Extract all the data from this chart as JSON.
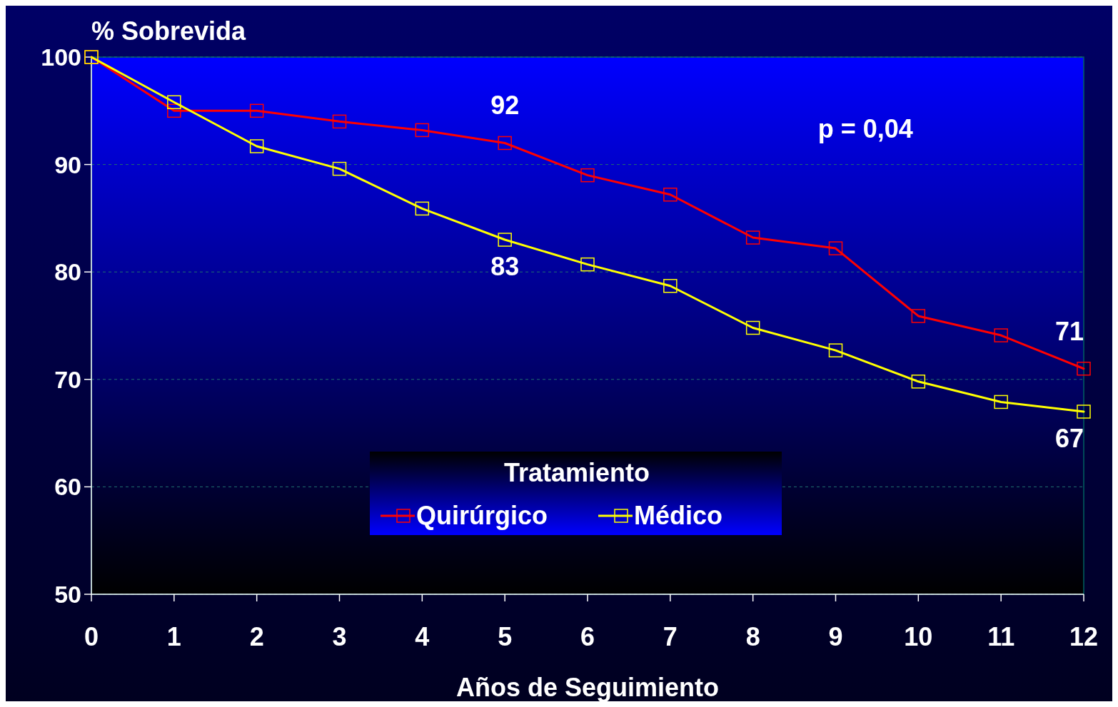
{
  "chart_data": {
    "type": "line",
    "ylabel": "% Sobrevida",
    "xlabel": "Años de Seguimiento",
    "legend_title": "Tratamiento",
    "x": [
      0,
      1,
      2,
      3,
      4,
      5,
      6,
      7,
      8,
      9,
      10,
      11,
      12
    ],
    "series": [
      {
        "name": "Quirúrgico",
        "color": "#ff0000",
        "values": [
          100,
          95,
          95,
          94,
          93.2,
          92,
          89,
          87.2,
          83.2,
          82.2,
          75.9,
          74.1,
          71
        ],
        "value_labels": [
          null,
          null,
          null,
          null,
          null,
          "92",
          null,
          null,
          null,
          null,
          null,
          null,
          "71"
        ]
      },
      {
        "name": "Médico",
        "color": "#ffff00",
        "values": [
          100,
          95.8,
          91.7,
          89.6,
          85.9,
          83,
          80.7,
          78.7,
          74.8,
          72.7,
          69.8,
          67.9,
          67
        ],
        "value_labels": [
          null,
          null,
          null,
          null,
          null,
          "83",
          null,
          null,
          null,
          null,
          null,
          null,
          "67"
        ]
      }
    ],
    "xlim": [
      0,
      12
    ],
    "xticks": [
      0,
      1,
      2,
      3,
      4,
      5,
      6,
      7,
      8,
      9,
      10,
      11,
      12
    ],
    "ylim": [
      50,
      100
    ],
    "yticks": [
      50,
      60,
      70,
      80,
      90,
      100
    ],
    "grid": "y",
    "legend": "bottom",
    "marker": "square",
    "line_style": "solid",
    "annotations": [
      "p = 0,04"
    ]
  }
}
